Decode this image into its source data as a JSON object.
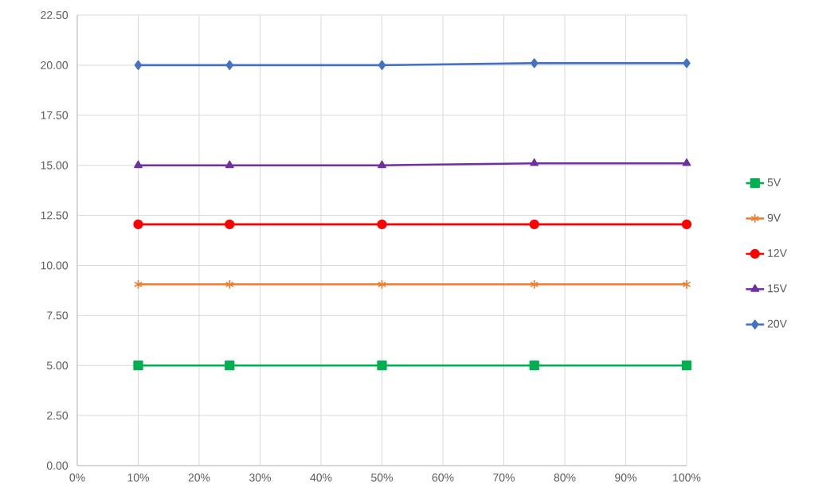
{
  "chart_data": {
    "type": "line",
    "x": [
      10,
      25,
      50,
      75,
      100
    ],
    "xlim": [
      0,
      100
    ],
    "xticks": [
      {
        "value": 0,
        "label": "0%"
      },
      {
        "value": 10,
        "label": "10%"
      },
      {
        "value": 20,
        "label": "20%"
      },
      {
        "value": 30,
        "label": "30%"
      },
      {
        "value": 40,
        "label": "40%"
      },
      {
        "value": 50,
        "label": "50%"
      },
      {
        "value": 60,
        "label": "60%"
      },
      {
        "value": 70,
        "label": "70%"
      },
      {
        "value": 80,
        "label": "80%"
      },
      {
        "value": 90,
        "label": "90%"
      },
      {
        "value": 100,
        "label": "100%"
      }
    ],
    "ylim": [
      0,
      22.5
    ],
    "yticks": [
      {
        "value": 0,
        "label": "0.00"
      },
      {
        "value": 2.5,
        "label": "2.50"
      },
      {
        "value": 5,
        "label": "5.00"
      },
      {
        "value": 7.5,
        "label": "7.50"
      },
      {
        "value": 10,
        "label": "10.00"
      },
      {
        "value": 12.5,
        "label": "12.50"
      },
      {
        "value": 15,
        "label": "15.00"
      },
      {
        "value": 17.5,
        "label": "17.50"
      },
      {
        "value": 20,
        "label": "20.00"
      },
      {
        "value": 22.5,
        "label": "22.50"
      }
    ],
    "grid": true,
    "legend": "right",
    "line_style": "solid",
    "series": [
      {
        "name": "5V",
        "color": "#00b050",
        "marker": "square",
        "values": [
          5.0,
          5.0,
          5.0,
          5.0,
          5.0
        ]
      },
      {
        "name": "9V",
        "color": "#ed7d31",
        "marker": "cross",
        "values": [
          9.05,
          9.05,
          9.05,
          9.05,
          9.05
        ]
      },
      {
        "name": "12V",
        "color": "#ff0000",
        "marker": "circle",
        "values": [
          12.05,
          12.05,
          12.05,
          12.05,
          12.05
        ]
      },
      {
        "name": "15V",
        "color": "#7030a0",
        "marker": "triangle",
        "values": [
          15.0,
          15.0,
          15.0,
          15.1,
          15.1
        ]
      },
      {
        "name": "20V",
        "color": "#4472c4",
        "marker": "diamond",
        "values": [
          20.0,
          20.0,
          20.0,
          20.1,
          20.1
        ]
      }
    ]
  }
}
